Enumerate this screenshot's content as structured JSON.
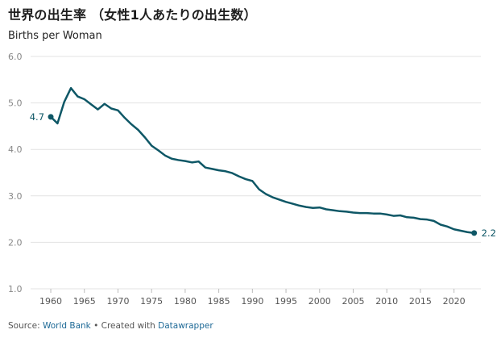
{
  "header": {
    "title": "世界の出生率 （女性1人あたりの出生数）",
    "subtitle": "Births per Woman"
  },
  "footer": {
    "source_label": "Source:",
    "source_link": "World Bank",
    "separator": " • Created with ",
    "tool_link": "Datawrapper"
  },
  "colors": {
    "line": "#0e5766",
    "grid": "#e3e3e3",
    "tick_text": "#888888"
  },
  "chart_data": {
    "type": "line",
    "title": "世界の出生率 （女性1人あたりの出生数）",
    "ylabel": "Births per Woman",
    "xlim": [
      1957,
      2024
    ],
    "ylim": [
      1.0,
      6.0
    ],
    "x_ticks": [
      1960,
      1965,
      1970,
      1975,
      1980,
      1985,
      1990,
      1995,
      2000,
      2005,
      2010,
      2015,
      2020
    ],
    "y_ticks": [
      1.0,
      2.0,
      3.0,
      4.0,
      5.0,
      6.0
    ],
    "y_tick_labels": [
      "1.0",
      "2.0",
      "3.0",
      "4.0",
      "5.0",
      "6.0"
    ],
    "grid": true,
    "start_label": "4.7",
    "end_label": "2.2",
    "series": [
      {
        "x": [
          1960,
          1961,
          1962,
          1963,
          1964,
          1965,
          1966,
          1967,
          1968,
          1969,
          1970,
          1971,
          1972,
          1973,
          1974,
          1975,
          1976,
          1977,
          1978,
          1979,
          1980,
          1981,
          1982,
          1983,
          1984,
          1985,
          1986,
          1987,
          1988,
          1989,
          1990,
          1991,
          1992,
          1993,
          1994,
          1995,
          1996,
          1997,
          1998,
          1999,
          2000,
          2001,
          2002,
          2003,
          2004,
          2005,
          2006,
          2007,
          2008,
          2009,
          2010,
          2011,
          2012,
          2013,
          2014,
          2015,
          2016,
          2017,
          2018,
          2019,
          2020,
          2021,
          2022,
          2023
        ],
        "values": [
          4.7,
          4.56,
          5.02,
          5.32,
          5.14,
          5.08,
          4.97,
          4.86,
          4.98,
          4.88,
          4.84,
          4.68,
          4.54,
          4.42,
          4.26,
          4.08,
          3.98,
          3.87,
          3.8,
          3.77,
          3.75,
          3.72,
          3.74,
          3.61,
          3.58,
          3.55,
          3.53,
          3.49,
          3.42,
          3.36,
          3.32,
          3.14,
          3.04,
          2.97,
          2.92,
          2.87,
          2.83,
          2.79,
          2.76,
          2.74,
          2.75,
          2.71,
          2.69,
          2.67,
          2.66,
          2.64,
          2.63,
          2.63,
          2.62,
          2.62,
          2.6,
          2.57,
          2.58,
          2.54,
          2.53,
          2.5,
          2.49,
          2.46,
          2.38,
          2.34,
          2.28,
          2.25,
          2.22,
          2.2
        ]
      }
    ]
  }
}
